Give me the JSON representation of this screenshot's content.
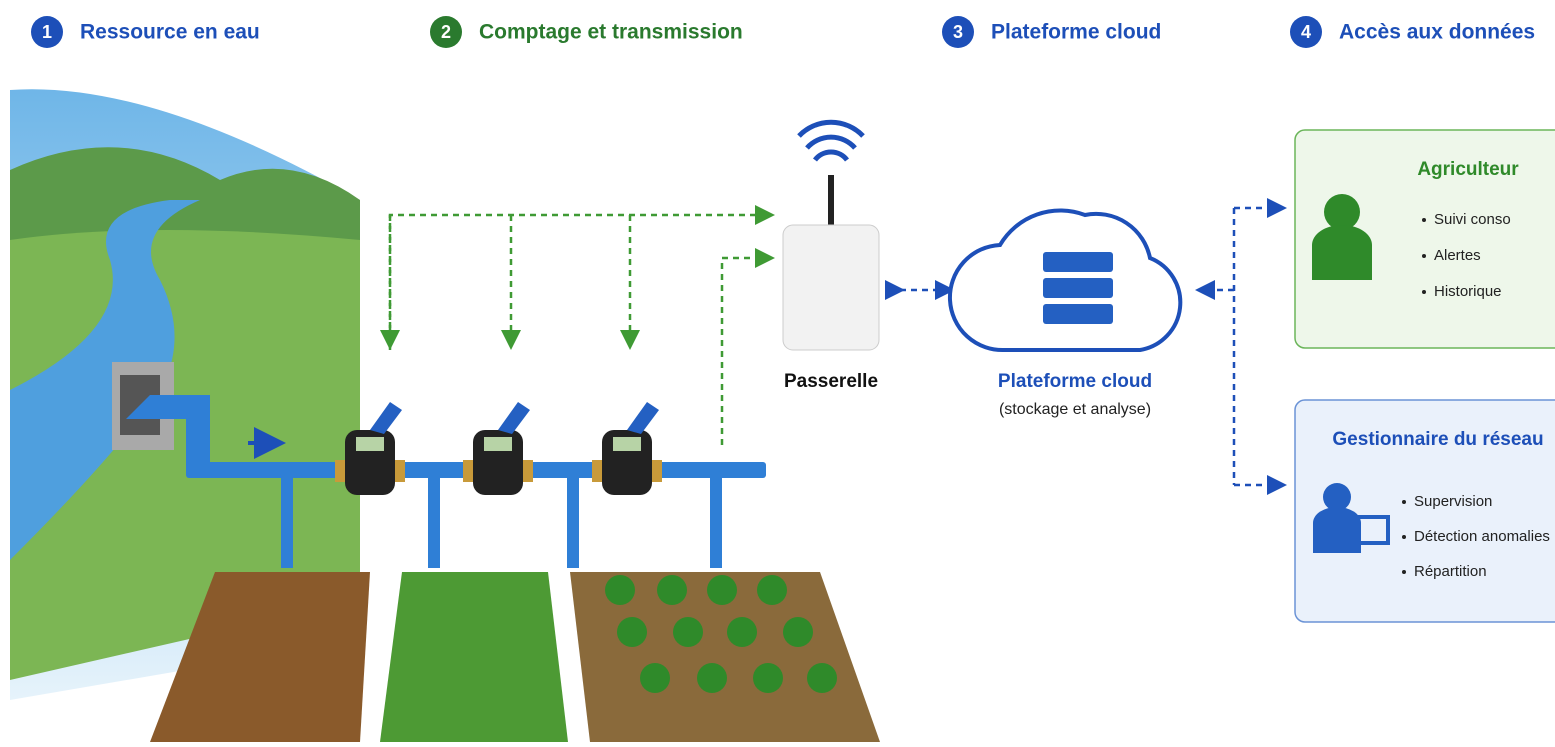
{
  "steps": [
    {
      "number": "1",
      "title": "Ressource en eau"
    },
    {
      "number": "2",
      "title": "Comptage et transmission"
    },
    {
      "number": "3",
      "title": "Plateforme cloud"
    },
    {
      "number": "4",
      "title": "Accès aux données"
    }
  ],
  "gateway": {
    "label": "Passerelle"
  },
  "cloud": {
    "label": "Plateforme cloud",
    "sublabel": "(stockage et analyse)"
  },
  "users": [
    {
      "title": "Agriculteur",
      "items": [
        "Suivi conso",
        "Alertes",
        "Historique"
      ]
    },
    {
      "title": "Gestionnaire du réseau",
      "items": [
        "Supervision",
        "Détection anomalies",
        "Répartition"
      ]
    }
  ]
}
